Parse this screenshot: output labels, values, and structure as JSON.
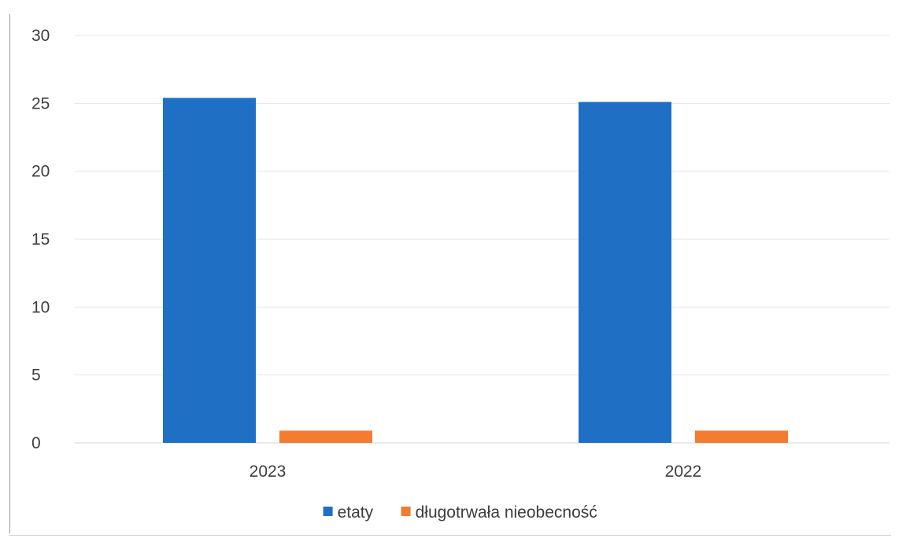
{
  "chart_data": {
    "type": "bar",
    "categories": [
      "2023",
      "2022"
    ],
    "series": [
      {
        "name": "etaty",
        "values": [
          25.4,
          25.1
        ],
        "color": "#1f6fc5"
      },
      {
        "name": "długotrwała nieobecność",
        "values": [
          0.9,
          0.9
        ],
        "color": "#f47c30"
      }
    ],
    "ylim": [
      0,
      30
    ],
    "yticks": [
      0,
      5,
      10,
      15,
      20,
      25,
      30
    ],
    "grid": true,
    "legend_position": "bottom-center"
  }
}
